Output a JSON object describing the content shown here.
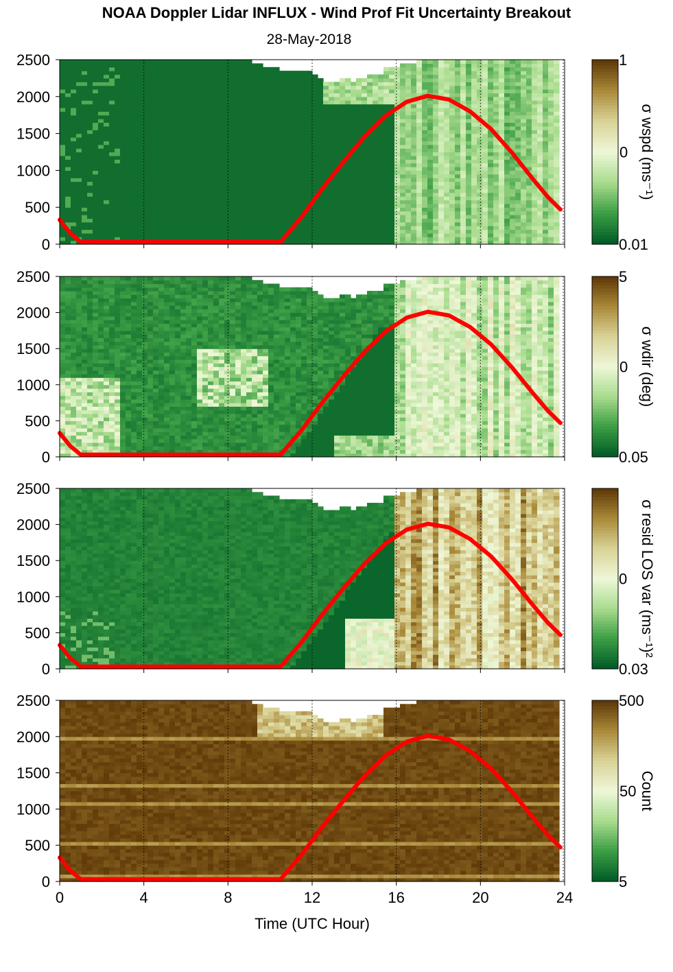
{
  "figure": {
    "title": "NOAA Doppler Lidar INFLUX - Wind Prof Fit Uncertainty Breakout",
    "subtitle": "28-May-2018",
    "xlabel": "Time (UTC Hour)"
  },
  "chart_data": [
    {
      "type": "heatmap",
      "colorbar_label": "σ wspd (ms⁻¹)",
      "colorbar_ticks": [
        "1",
        "0",
        "0.01"
      ],
      "xlim": [
        0,
        24
      ],
      "ylim": [
        0,
        2500
      ],
      "xticks": [
        0,
        4,
        8,
        12,
        16,
        20,
        24
      ],
      "yticks": [
        0,
        500,
        1000,
        1500,
        2000,
        2500
      ],
      "xlabel": "",
      "ylabel": "",
      "grid": "dotted vertical lines at x ticks",
      "colormap": [
        "#005a25",
        "#3c9e45",
        "#a9dc8e",
        "#eef7d8",
        "#d9d296",
        "#a98838",
        "#5c3606"
      ]
    },
    {
      "type": "heatmap",
      "colorbar_label": "σ wdir (deg)",
      "colorbar_ticks": [
        "5",
        "0",
        "0.05"
      ],
      "xlim": [
        0,
        24
      ],
      "ylim": [
        0,
        2500
      ],
      "xticks": [
        0,
        4,
        8,
        12,
        16,
        20,
        24
      ],
      "yticks": [
        0,
        500,
        1000,
        1500,
        2000,
        2500
      ],
      "xlabel": "",
      "ylabel": "",
      "grid": "dotted vertical lines at x ticks",
      "colormap": [
        "#005a25",
        "#3c9e45",
        "#a9dc8e",
        "#eef7d8",
        "#d9d296",
        "#a98838",
        "#5c3606"
      ]
    },
    {
      "type": "heatmap",
      "colorbar_label": "σ resid LOS var (ms⁻¹)²",
      "colorbar_ticks": [
        "0",
        "0.03"
      ],
      "xlim": [
        0,
        24
      ],
      "ylim": [
        0,
        2500
      ],
      "xticks": [
        0,
        4,
        8,
        12,
        16,
        20,
        24
      ],
      "yticks": [
        0,
        500,
        1000,
        1500,
        2000,
        2500
      ],
      "xlabel": "",
      "ylabel": "",
      "grid": "dotted vertical lines at x ticks",
      "colormap": [
        "#005a25",
        "#3c9e45",
        "#a9dc8e",
        "#eef7d8",
        "#d9d296",
        "#a98838",
        "#5c3606"
      ]
    },
    {
      "type": "heatmap",
      "colorbar_label": "Count",
      "colorbar_ticks": [
        "500",
        "50",
        "5"
      ],
      "xlim": [
        0,
        24
      ],
      "ylim": [
        0,
        2500
      ],
      "xticks": [
        0,
        4,
        8,
        12,
        16,
        20,
        24
      ],
      "xticklabels": [
        "0",
        "4",
        "8",
        "12",
        "16",
        "20",
        "24"
      ],
      "yticks": [
        0,
        500,
        1000,
        1500,
        2000,
        2500
      ],
      "xlabel": "Time (UTC Hour)",
      "ylabel": "",
      "grid": "dotted vertical lines at x ticks",
      "colormap": [
        "#005a25",
        "#3c9e45",
        "#a9dc8e",
        "#eef7d8",
        "#d9d296",
        "#a98838",
        "#5c3606"
      ]
    }
  ],
  "overlay_line": {
    "color": "#ff0000",
    "x": [
      0,
      0.5,
      1,
      10.5,
      11.5,
      12.5,
      13.5,
      14.5,
      15.5,
      16.5,
      17.5,
      18.5,
      19.5,
      20.5,
      21.5,
      22.5,
      23.2,
      23.8
    ],
    "y": [
      330,
      150,
      30,
      30,
      370,
      760,
      1120,
      1460,
      1740,
      1930,
      2010,
      1960,
      1800,
      1560,
      1240,
      880,
      640,
      470
    ]
  }
}
